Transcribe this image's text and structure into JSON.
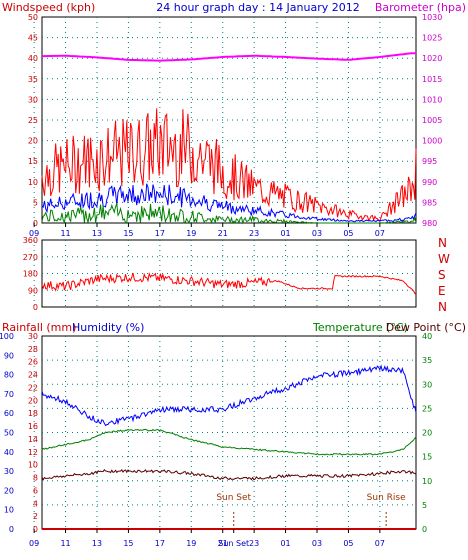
{
  "title": "24 hour graph day : 14 January 2012",
  "colors": {
    "wind_speed": "#ff0000",
    "wind_gust": "#ff0000",
    "wind_avg": "#0000ff",
    "wind_low": "#008000",
    "barometer": "#ff00ff",
    "wind_dir": "#ff0000",
    "humidity": "#0000ff",
    "temperature": "#008000",
    "dew_point": "#550000",
    "rain": "#cc0000",
    "grid": "#008080",
    "left_axis_red": "#cc0000",
    "left_axis_blue": "#0000cc",
    "right_axis_green": "#008000",
    "sun_marker": "#993300"
  },
  "chart_data": [
    {
      "type": "line",
      "panel": "wind",
      "y_left_label": "Windspeed (kph)",
      "y_right_label": "Barometer (hpa)",
      "y_left_ticks": [
        "0",
        "5",
        "10",
        "15",
        "20",
        "25",
        "30",
        "35",
        "40",
        "45",
        "50"
      ],
      "y_right_ticks": [
        "980",
        "985",
        "990",
        "995",
        "1000",
        "1005",
        "1010",
        "1015",
        "1020",
        "1025",
        "1030"
      ],
      "ylim_left": [
        0,
        50
      ],
      "ylim_right": [
        980,
        1030
      ],
      "x_ticks": [
        "11",
        "13",
        "15",
        "17",
        "19",
        "21",
        "23",
        "01",
        "03",
        "05",
        "07",
        "09"
      ],
      "x_hours": [
        9.5,
        11,
        13,
        15,
        17,
        19,
        21,
        23,
        25,
        27,
        29,
        31,
        33,
        33.3
      ],
      "series": [
        {
          "name": "gust",
          "key": "gust",
          "values": [
            11,
            13,
            15,
            16,
            18,
            17,
            12,
            8,
            6,
            4,
            2,
            1,
            8,
            12
          ]
        },
        {
          "name": "average",
          "key": "avg",
          "values": [
            4,
            5,
            6,
            7,
            7,
            6,
            4,
            3,
            2,
            1,
            0.5,
            0.5,
            1,
            2
          ]
        },
        {
          "name": "low",
          "key": "low",
          "values": [
            2,
            2,
            3,
            3,
            3,
            2,
            1,
            1,
            0.5,
            0,
            0,
            0,
            0.5,
            1
          ]
        },
        {
          "name": "barometer",
          "key": "baro",
          "values": [
            1020.5,
            1020.6,
            1020.2,
            1019.6,
            1019.4,
            1019.7,
            1020.3,
            1020.6,
            1020.3,
            1019.9,
            1019.6,
            1020.3,
            1021.2,
            1021.2
          ]
        }
      ]
    },
    {
      "type": "line",
      "panel": "wind_direction",
      "y_ticks": [
        "0",
        "90",
        "180",
        "270",
        "360"
      ],
      "ylim": [
        0,
        360
      ],
      "compass_labels": [
        "N",
        "W",
        "S",
        "E",
        "N"
      ],
      "x_ticks": [
        "11",
        "13",
        "15",
        "17",
        "19",
        "21",
        "23",
        "01",
        "03",
        "05",
        "07",
        "09"
      ],
      "x_hours": [
        9.5,
        11,
        13,
        15,
        17,
        19,
        21,
        23,
        24.5,
        25.5,
        26,
        27,
        28,
        28.1,
        31,
        32.5,
        33.3
      ],
      "series": [
        {
          "name": "direction",
          "key": "dir",
          "values": [
            120,
            110,
            150,
            160,
            155,
            140,
            120,
            130,
            140,
            110,
            100,
            100,
            100,
            165,
            165,
            140,
            70
          ]
        }
      ]
    },
    {
      "type": "line",
      "panel": "temperature_humidity",
      "y_label_rain": "Rainfall (mm)",
      "y_label_humidity": "Humidity (%)",
      "y_label_temperature": "Temperature (°C)",
      "y_label_dewpoint": "Dew Point (°C)",
      "humidity_ticks": [
        "0",
        "10",
        "20",
        "30",
        "40",
        "50",
        "60",
        "70",
        "80",
        "90",
        "100"
      ],
      "rain_ticks": [
        "0",
        "2",
        "4",
        "6",
        "8",
        "10",
        "12",
        "14",
        "16",
        "18",
        "20",
        "22",
        "24",
        "26",
        "28",
        "30"
      ],
      "temperature_ticks": [
        "0",
        "5",
        "10",
        "15",
        "20",
        "25",
        "30",
        "35",
        "40"
      ],
      "ylim_humidity": [
        0,
        100
      ],
      "ylim_rain": [
        0,
        30
      ],
      "ylim_temperature": [
        0,
        40
      ],
      "x_ticks": [
        "11",
        "13",
        "15",
        "17",
        "19",
        "21",
        "Sun Set",
        "23",
        "01",
        "03",
        "05",
        "07",
        "09"
      ],
      "x_hours": [
        9.5,
        11,
        12.5,
        13.5,
        15,
        17,
        19,
        21,
        23,
        25,
        27,
        29,
        31,
        32.5,
        33.3
      ],
      "annotations": [
        {
          "label": "Sun Set",
          "hour": 21.7
        },
        {
          "label": "Sun Rise",
          "hour": 31.4
        }
      ],
      "series": [
        {
          "name": "humidity",
          "key": "hum",
          "values": [
            70,
            66,
            58,
            55,
            57,
            62,
            62,
            62,
            68,
            73,
            79,
            81,
            83,
            82,
            60
          ]
        },
        {
          "name": "temperature",
          "key": "temp",
          "values": [
            16.5,
            17.5,
            18.5,
            20,
            20.5,
            20.5,
            18.5,
            17,
            16.5,
            16,
            15.5,
            15.5,
            15.5,
            16.5,
            19
          ]
        },
        {
          "name": "dew point",
          "key": "dew",
          "values": [
            10.5,
            11,
            11.5,
            12,
            12,
            12,
            11.5,
            10.5,
            10.5,
            11,
            11,
            11,
            11.5,
            12,
            11.5
          ]
        },
        {
          "name": "rainfall",
          "key": "rain",
          "values": [
            0,
            0,
            0,
            0,
            0,
            0,
            0,
            0,
            0,
            0,
            0,
            0,
            0,
            0,
            0
          ]
        }
      ]
    }
  ]
}
